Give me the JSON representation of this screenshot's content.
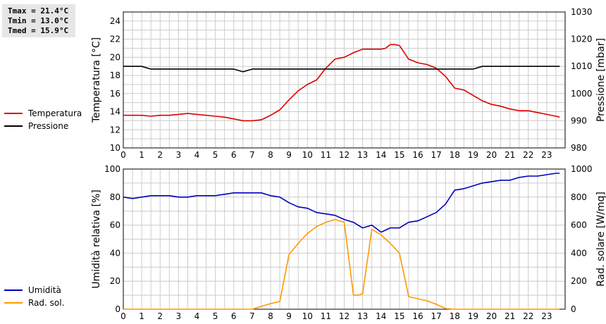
{
  "stats": {
    "tmax": "Tmax = 21.4°C",
    "tmin": "Tmin = 13.0°C",
    "tmed": "Tmed = 15.9°C"
  },
  "colors": {
    "temperatura": "#dd0000",
    "pressione": "#000000",
    "umidita": "#0000bb",
    "radiazione": "#ff9900",
    "grid": "#cccccc"
  },
  "chart_data": [
    {
      "type": "line",
      "ylabel": "Temperatura [°C]",
      "y2label": "Pressione [mbar]",
      "xlim": [
        0,
        24
      ],
      "ylim": [
        10,
        25
      ],
      "y2lim": [
        980,
        1030
      ],
      "x_ticks": [
        0,
        1,
        2,
        3,
        4,
        5,
        6,
        7,
        8,
        9,
        10,
        11,
        12,
        13,
        14,
        15,
        16,
        17,
        18,
        19,
        20,
        21,
        22,
        23
      ],
      "y_ticks": [
        10,
        12,
        14,
        16,
        18,
        20,
        22,
        24
      ],
      "y2_ticks": [
        980,
        990,
        1000,
        1010,
        1020,
        1030
      ],
      "grid": true,
      "series": [
        {
          "name": "Temperatura",
          "axis": "left",
          "x": [
            0,
            0.5,
            1,
            1.5,
            2,
            2.5,
            3,
            3.5,
            4,
            4.5,
            5,
            5.5,
            6,
            6.5,
            7,
            7.5,
            8,
            8.5,
            9,
            9.5,
            10,
            10.5,
            11,
            11.5,
            12,
            12.5,
            13,
            13.5,
            14,
            14.25,
            14.5,
            14.75,
            15,
            15.5,
            16,
            16.5,
            17,
            17.5,
            18,
            18.5,
            19,
            19.5,
            20,
            20.5,
            21,
            21.5,
            22,
            22.5,
            23,
            23.5,
            23.7
          ],
          "y": [
            13.6,
            13.6,
            13.6,
            13.5,
            13.6,
            13.6,
            13.7,
            13.8,
            13.7,
            13.6,
            13.5,
            13.4,
            13.2,
            13.0,
            13.0,
            13.1,
            13.6,
            14.2,
            15.3,
            16.3,
            17.0,
            17.5,
            18.8,
            19.8,
            20.0,
            20.5,
            20.9,
            20.9,
            20.9,
            21.0,
            21.4,
            21.4,
            21.3,
            19.8,
            19.4,
            19.2,
            18.8,
            17.9,
            16.6,
            16.4,
            15.8,
            15.2,
            14.8,
            14.6,
            14.3,
            14.1,
            14.1,
            13.9,
            13.7,
            13.5,
            13.4
          ]
        },
        {
          "name": "Pressione",
          "axis": "right",
          "x": [
            0,
            1,
            1.5,
            2,
            3,
            4,
            5,
            6,
            6.5,
            7,
            8,
            9,
            10,
            11,
            12,
            13,
            14,
            15,
            16,
            17,
            18,
            19,
            19.5,
            20,
            21,
            22,
            23,
            23.7
          ],
          "y": [
            1010,
            1010,
            1009,
            1009,
            1009,
            1009,
            1009,
            1009,
            1008,
            1009,
            1009,
            1009,
            1009,
            1009,
            1009,
            1009,
            1009,
            1009,
            1009,
            1009,
            1009,
            1009,
            1010,
            1010,
            1010,
            1010,
            1010,
            1010
          ]
        }
      ]
    },
    {
      "type": "line",
      "ylabel": "Umidità relativa [%]",
      "y2label": "Rad. solare [W/mq]",
      "xlim": [
        0,
        24
      ],
      "ylim": [
        0,
        100
      ],
      "y2lim": [
        0,
        1000
      ],
      "x_ticks": [
        0,
        1,
        2,
        3,
        4,
        5,
        6,
        7,
        8,
        9,
        10,
        11,
        12,
        13,
        14,
        15,
        16,
        17,
        18,
        19,
        20,
        21,
        22,
        23
      ],
      "y_ticks": [
        0,
        20,
        40,
        60,
        80,
        100
      ],
      "y2_ticks": [
        0,
        200,
        400,
        600,
        800,
        1000
      ],
      "grid": true,
      "series": [
        {
          "name": "Umidità",
          "axis": "left",
          "x": [
            0,
            0.5,
            1,
            1.5,
            2,
            2.5,
            3,
            3.5,
            4,
            4.5,
            5,
            5.5,
            6,
            6.5,
            7,
            7.5,
            8,
            8.5,
            9,
            9.5,
            10,
            10.5,
            11,
            11.5,
            12,
            12.5,
            13,
            13.5,
            14,
            14.5,
            15,
            15.5,
            16,
            16.5,
            17,
            17.5,
            18,
            18.5,
            19,
            19.5,
            20,
            20.5,
            21,
            21.5,
            22,
            22.5,
            23,
            23.5,
            23.7
          ],
          "y": [
            80,
            79,
            80,
            81,
            81,
            81,
            80,
            80,
            81,
            81,
            81,
            82,
            83,
            83,
            83,
            83,
            81,
            80,
            76,
            73,
            72,
            69,
            68,
            67,
            64,
            62,
            58,
            60,
            55,
            58,
            58,
            62,
            63,
            66,
            69,
            75,
            85,
            86,
            88,
            90,
            91,
            92,
            92,
            94,
            95,
            95,
            96,
            97,
            97
          ]
        },
        {
          "name": "Rad. sol.",
          "axis": "right",
          "x": [
            0,
            1,
            2,
            3,
            4,
            5,
            6,
            7,
            7.5,
            8,
            8.5,
            9,
            9.5,
            10,
            10.5,
            11,
            11.5,
            12,
            12.5,
            12.75,
            13,
            13.5,
            14,
            14.5,
            15,
            15.5,
            16,
            16.5,
            17,
            17.5,
            18,
            19,
            20,
            21,
            22,
            23,
            23.7
          ],
          "y": [
            0,
            0,
            0,
            0,
            0,
            0,
            0,
            0,
            20,
            40,
            55,
            390,
            470,
            540,
            590,
            620,
            640,
            620,
            100,
            100,
            110,
            570,
            530,
            470,
            400,
            90,
            75,
            60,
            35,
            5,
            0,
            0,
            0,
            0,
            0,
            0,
            0
          ]
        }
      ]
    }
  ],
  "legends": [
    [
      {
        "label": "Temperatura",
        "color": "#dd0000"
      },
      {
        "label": "Pressione",
        "color": "#000000"
      }
    ],
    [
      {
        "label": "Umidità",
        "color": "#0000bb"
      },
      {
        "label": "Rad. sol.",
        "color": "#ff9900"
      }
    ]
  ]
}
